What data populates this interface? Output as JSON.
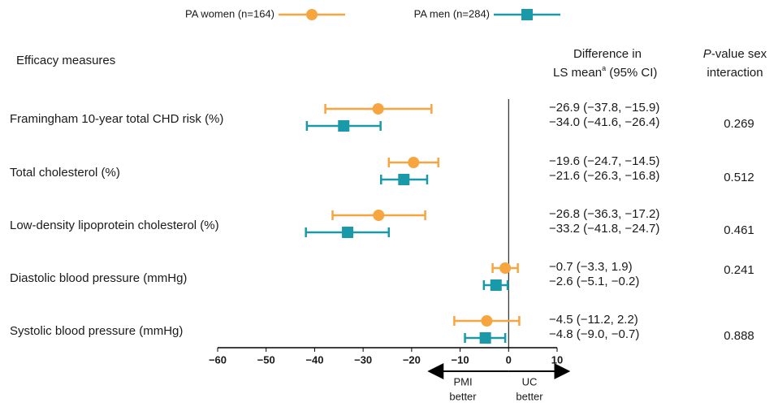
{
  "chart_data": {
    "type": "forest",
    "column_headers": {
      "measures": "Efficacy measures",
      "difference_line1": "Difference in",
      "difference_ls": "LS",
      "difference_mean": "mean",
      "difference_note": "a",
      "difference_ci": "(95%  CI)",
      "p_italic": "P",
      "p_rest": "-value sex",
      "p_line2": "interaction"
    },
    "categories": [
      "Framingham 10-year total CHD risk (%)",
      "Total cholesterol (%)",
      "Low-density lipoprotein cholesterol (%)",
      "Diastolic blood pressure (mmHg)",
      "Systolic blood pressure (mmHg)"
    ],
    "series": [
      {
        "name": "PA women (n=164)",
        "color": "#f7a541",
        "marker": "circle",
        "values": [
          -26.9,
          -19.6,
          -26.8,
          -0.7,
          -4.5
        ],
        "lower": [
          -37.8,
          -24.7,
          -36.3,
          -3.3,
          -11.2
        ],
        "upper": [
          -15.9,
          -14.5,
          -17.2,
          1.9,
          2.2
        ],
        "value_labels": [
          "−26.9 (−37.8, −15.9)",
          "−19.6 (−24.7, −14.5)",
          "−26.8 (−36.3, −17.2)",
          "−0.7 (−3.3, 1.9)",
          "−4.5 (−11.2, 2.2)"
        ]
      },
      {
        "name": "PA men (n=284)",
        "color": "#1a9aa8",
        "marker": "square",
        "values": [
          -34.0,
          -21.6,
          -33.2,
          -2.6,
          -4.8
        ],
        "lower": [
          -41.6,
          -26.3,
          -41.8,
          -5.1,
          -9.0
        ],
        "upper": [
          -26.4,
          -16.8,
          -24.7,
          -0.2,
          -0.7
        ],
        "value_labels": [
          "−34.0 (−41.6, −26.4)",
          "−21.6 (−26.3, −16.8)",
          "−33.2 (−41.8, −24.7)",
          "−2.6 (−5.1, −0.2)",
          "−4.8 (−9.0, −0.7)"
        ]
      }
    ],
    "p_values": [
      0.269,
      0.512,
      0.461,
      0.241,
      0.888
    ],
    "xlim": [
      -60,
      10
    ],
    "xticks": [
      {
        "value": -60,
        "label": "−60"
      },
      {
        "value": -50,
        "label": "−50"
      },
      {
        "value": -40,
        "label": "−40"
      },
      {
        "value": -30,
        "label": "−30"
      },
      {
        "value": -20,
        "label": "−20"
      },
      {
        "value": -10,
        "label": "−10"
      },
      0,
      10
    ],
    "reference_line": 0,
    "arrow_labels": {
      "left": [
        "PMI",
        "better"
      ],
      "right": [
        "UC",
        "better"
      ]
    }
  }
}
